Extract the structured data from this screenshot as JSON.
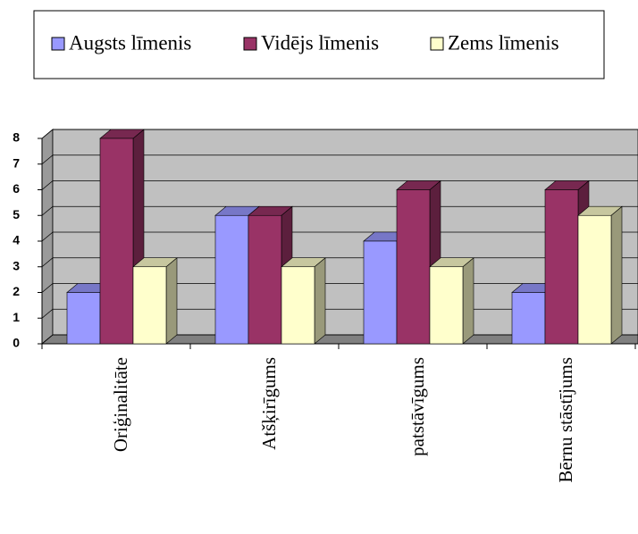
{
  "chart_data": {
    "type": "bar3d",
    "categories": [
      "Oriģinalitāte",
      "Atšķirīgums",
      "patstāvīgums",
      "Bērnu stāstījums"
    ],
    "series": [
      {
        "name": "Augsts līmenis",
        "color": "#9999ff",
        "values": [
          2,
          5,
          4,
          2
        ]
      },
      {
        "name": "Vidējs līmenis",
        "color": "#993366",
        "values": [
          8,
          5,
          6,
          6
        ]
      },
      {
        "name": "Zems līmenis",
        "color": "#ffffcc",
        "values": [
          3,
          3,
          3,
          5
        ]
      }
    ],
    "ylim": [
      0,
      8
    ],
    "yticks": [
      0,
      1,
      2,
      3,
      4,
      5,
      6,
      7,
      8
    ],
    "grid": true,
    "legend": "top"
  }
}
